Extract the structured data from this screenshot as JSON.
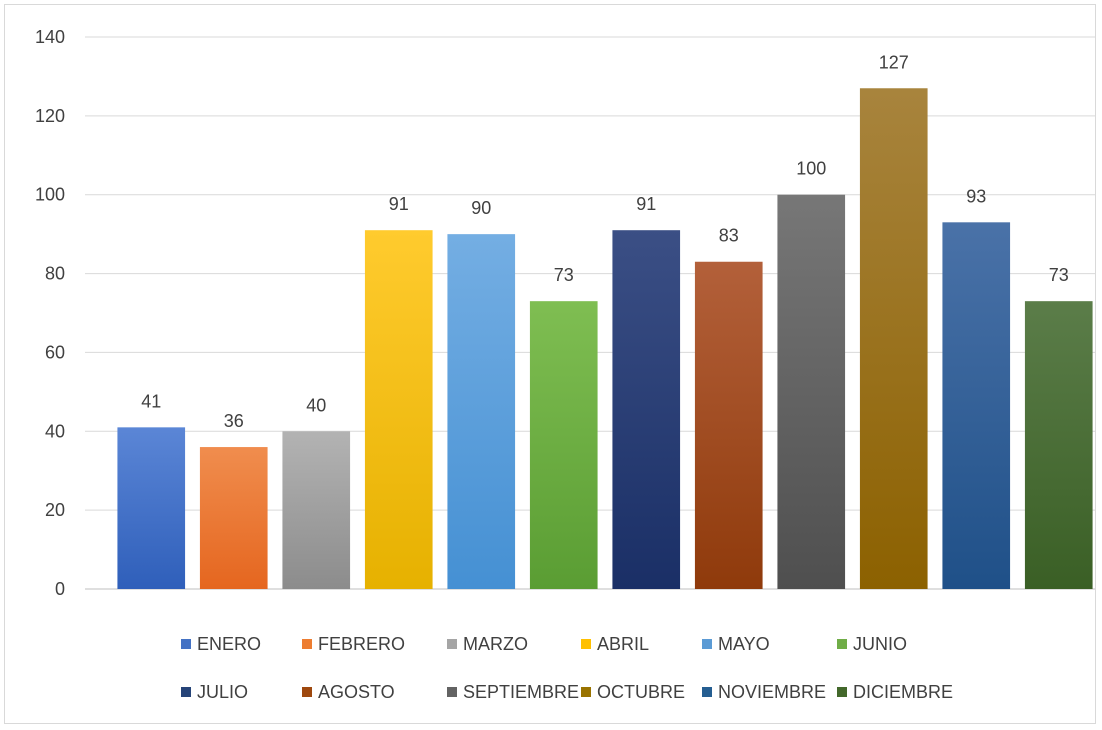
{
  "chart_data": {
    "type": "bar",
    "title": "",
    "xlabel": "",
    "ylabel": "",
    "categories": [
      "ENERO",
      "FEBRERO",
      "MARZO",
      "ABRIL",
      "MAYO",
      "JUNIO",
      "JULIO",
      "AGOSTO",
      "SEPTIEMBRE",
      "OCTUBRE",
      "NOVIEMBRE",
      "DICIEMBRE"
    ],
    "values": [
      41,
      36,
      40,
      91,
      90,
      73,
      91,
      83,
      100,
      127,
      93,
      73
    ],
    "ylim": [
      0,
      140
    ],
    "yticks": [
      0,
      20,
      40,
      60,
      80,
      100,
      120,
      140
    ],
    "grid": true,
    "legend_position": "bottom",
    "colors_top": [
      "#5b86d6",
      "#f08d4e",
      "#b3b3b3",
      "#ffcb2e",
      "#74aee3",
      "#7fbe52",
      "#3b4f85",
      "#b3603a",
      "#777777",
      "#a8843d",
      "#4a72a8",
      "#5b7d49"
    ],
    "colors_bottom": [
      "#2f5fba",
      "#e5661f",
      "#8c8c8c",
      "#e6b100",
      "#4590d3",
      "#5a9d33",
      "#1a2f66",
      "#8f3a0b",
      "#4f4f4f",
      "#8c6100",
      "#1f5088",
      "#3a5f25"
    ],
    "legend_colors": [
      "#4472c4",
      "#ed7d31",
      "#a5a5a5",
      "#ffc000",
      "#5b9bd5",
      "#70ad47",
      "#264478",
      "#9e480e",
      "#636363",
      "#997300",
      "#255e91",
      "#43682b"
    ]
  }
}
